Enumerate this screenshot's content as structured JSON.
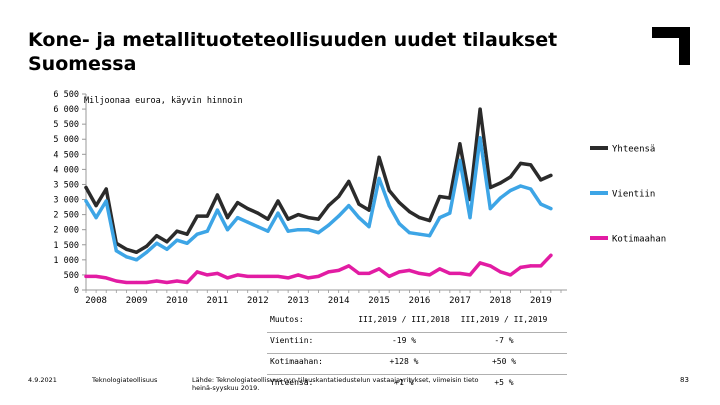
{
  "page": {
    "title": "Kone- ja metallituoteteollisuuden uudet tilaukset Suomessa",
    "footer_date": "4.9.2021",
    "footer_org": "Teknologiateollisuus",
    "footer_source": "Lähde: Teknologiateollisuus ry:n tilauskantatiedustelun vastaajayritykset, viimeisin tieto heinä-syyskuu 2019.",
    "page_number": "83"
  },
  "colors": {
    "total": "#2b2b2b",
    "export": "#3da5e6",
    "domestic": "#e21ca3",
    "axis": "#999999"
  },
  "chart_data": {
    "type": "line",
    "title": "Kone- ja metallituoteteollisuuden uudet tilaukset Suomessa",
    "ylabel": "Miljoonaa euroa, käyvin hinnoin",
    "xlabel": "",
    "ylim": [
      0,
      6500
    ],
    "yticks": [
      0,
      500,
      1000,
      1500,
      2000,
      2500,
      3000,
      3500,
      4000,
      4500,
      5000,
      5500,
      6000,
      6500
    ],
    "ytick_labels": [
      "0",
      "500",
      "1 000",
      "1 500",
      "2 000",
      "2 500",
      "3 000",
      "3 500",
      "4 000",
      "4 500",
      "5 000",
      "5 500",
      "6 000",
      "6 500"
    ],
    "xlim": [
      0,
      47
    ],
    "x_tick_labels": [
      "2008",
      "2009",
      "2010",
      "2011",
      "2012",
      "2013",
      "2014",
      "2015",
      "2016",
      "2017",
      "2018",
      "2019"
    ],
    "x_tick_index": [
      1,
      5,
      9,
      13,
      17,
      21,
      25,
      29,
      33,
      37,
      41,
      45
    ],
    "series": [
      {
        "name": "Yhteensä",
        "color_key": "total",
        "values": [
          3400,
          2800,
          3350,
          1550,
          1350,
          1250,
          1450,
          1800,
          1600,
          1950,
          1850,
          2450,
          2450,
          3150,
          2400,
          2900,
          2700,
          2550,
          2350,
          2950,
          2350,
          2500,
          2400,
          2350,
          2800,
          3100,
          3600,
          2850,
          2650,
          4400,
          3300,
          2900,
          2600,
          2400,
          2300,
          3100,
          3050,
          4850,
          3000,
          6000,
          3400,
          3550,
          3750,
          4200,
          4150,
          3650,
          3800
        ]
      },
      {
        "name": "Vientiin",
        "color_key": "export",
        "values": [
          2950,
          2400,
          2950,
          1300,
          1100,
          1000,
          1250,
          1550,
          1350,
          1650,
          1550,
          1850,
          1950,
          2650,
          2000,
          2400,
          2250,
          2100,
          1950,
          2550,
          1950,
          2000,
          2000,
          1900,
          2150,
          2450,
          2800,
          2400,
          2100,
          3700,
          2800,
          2200,
          1900,
          1850,
          1800,
          2400,
          2550,
          4300,
          2400,
          5050,
          2700,
          3050,
          3300,
          3450,
          3350,
          2850,
          2700
        ]
      },
      {
        "name": "Kotimaahan",
        "color_key": "domestic",
        "values": [
          450,
          450,
          400,
          300,
          250,
          250,
          250,
          300,
          250,
          300,
          250,
          600,
          500,
          550,
          400,
          500,
          450,
          450,
          450,
          450,
          400,
          500,
          400,
          450,
          600,
          650,
          800,
          550,
          550,
          700,
          450,
          600,
          650,
          550,
          500,
          700,
          550,
          550,
          500,
          900,
          800,
          600,
          500,
          750,
          800,
          800,
          1150
        ]
      }
    ]
  },
  "stats_table": {
    "headers": [
      "Muutos:",
      "III,2019 / III,2018",
      "III,2019 / II,2019"
    ],
    "rows": [
      [
        "Vientiin:",
        "-19 %",
        "-7 %"
      ],
      [
        "Kotimaahan:",
        "+128 %",
        "+50 %"
      ],
      [
        "Yhteensä:",
        "+1 %",
        "+5 %"
      ]
    ]
  }
}
